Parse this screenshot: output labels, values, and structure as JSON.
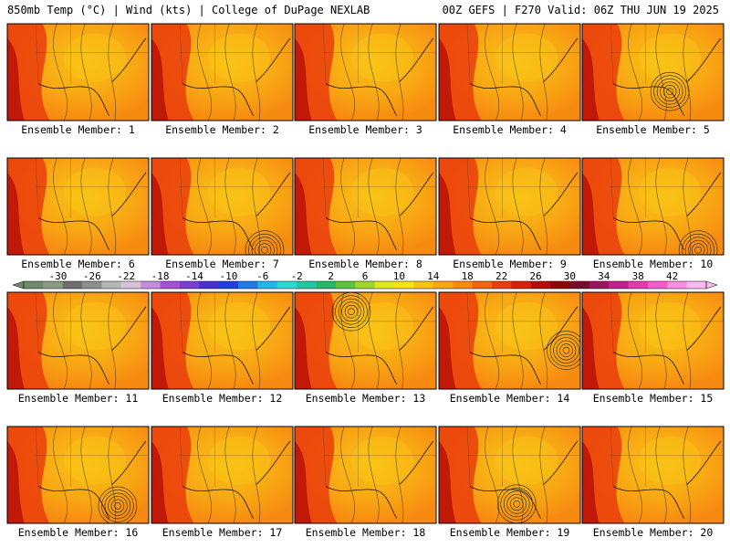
{
  "header": {
    "left": "850mb Temp (°C) | Wind (kts) | College of DuPage NEXLAB",
    "right": "00Z GEFS | F270 Valid: 06Z THU JUN 19 2025"
  },
  "member_label_prefix": "Ensemble Member:",
  "members": [
    {
      "id": "1",
      "low": null
    },
    {
      "id": "2",
      "low": null
    },
    {
      "id": "3",
      "low": null
    },
    {
      "id": "4",
      "low": null
    },
    {
      "id": "5",
      "low": [
        0.62,
        0.7
      ]
    },
    {
      "id": "6",
      "low": null
    },
    {
      "id": "7",
      "low": [
        0.8,
        0.95
      ]
    },
    {
      "id": "8",
      "low": null
    },
    {
      "id": "9",
      "low": null
    },
    {
      "id": "10",
      "low": [
        0.82,
        0.95
      ]
    },
    {
      "id": "11",
      "low": null
    },
    {
      "id": "12",
      "low": null
    },
    {
      "id": "13",
      "low": [
        0.4,
        0.2
      ]
    },
    {
      "id": "14",
      "low": [
        0.9,
        0.6
      ]
    },
    {
      "id": "15",
      "low": null
    },
    {
      "id": "16",
      "low": [
        0.78,
        0.82
      ]
    },
    {
      "id": "17",
      "low": null
    },
    {
      "id": "18",
      "low": null
    },
    {
      "id": "19",
      "low": [
        0.55,
        0.8
      ]
    },
    {
      "id": "20",
      "low": null
    }
  ],
  "colorbar": {
    "ticks": [
      "-30",
      "-26",
      "-22",
      "-18",
      "-14",
      "-10",
      "-6",
      "-2",
      "2",
      "6",
      "10",
      "14",
      "18",
      "22",
      "26",
      "30",
      "34",
      "38",
      "42"
    ],
    "colors": [
      "#6f8a6a",
      "#8a9a86",
      "#6f6f6f",
      "#8e8e8e",
      "#b7b7b7",
      "#d6c3d9",
      "#c58bdc",
      "#a54fd6",
      "#7a3fd0",
      "#4a2fd2",
      "#1f3fe0",
      "#1f7be8",
      "#25b5ee",
      "#2fd9d2",
      "#21c9a0",
      "#27b66a",
      "#5fc23a",
      "#9ed62a",
      "#dfe81e",
      "#f8e21a",
      "#f9c316",
      "#f8a614",
      "#f78a11",
      "#f2650f",
      "#ea3d0c",
      "#d8200a",
      "#b60e08",
      "#8f0606",
      "#7a0a2a",
      "#9a1460",
      "#c21e8e",
      "#e23ab0",
      "#f45ccd",
      "#f78ee0",
      "#fbb9ee"
    ],
    "vmin": -34,
    "vmax": 46
  }
}
